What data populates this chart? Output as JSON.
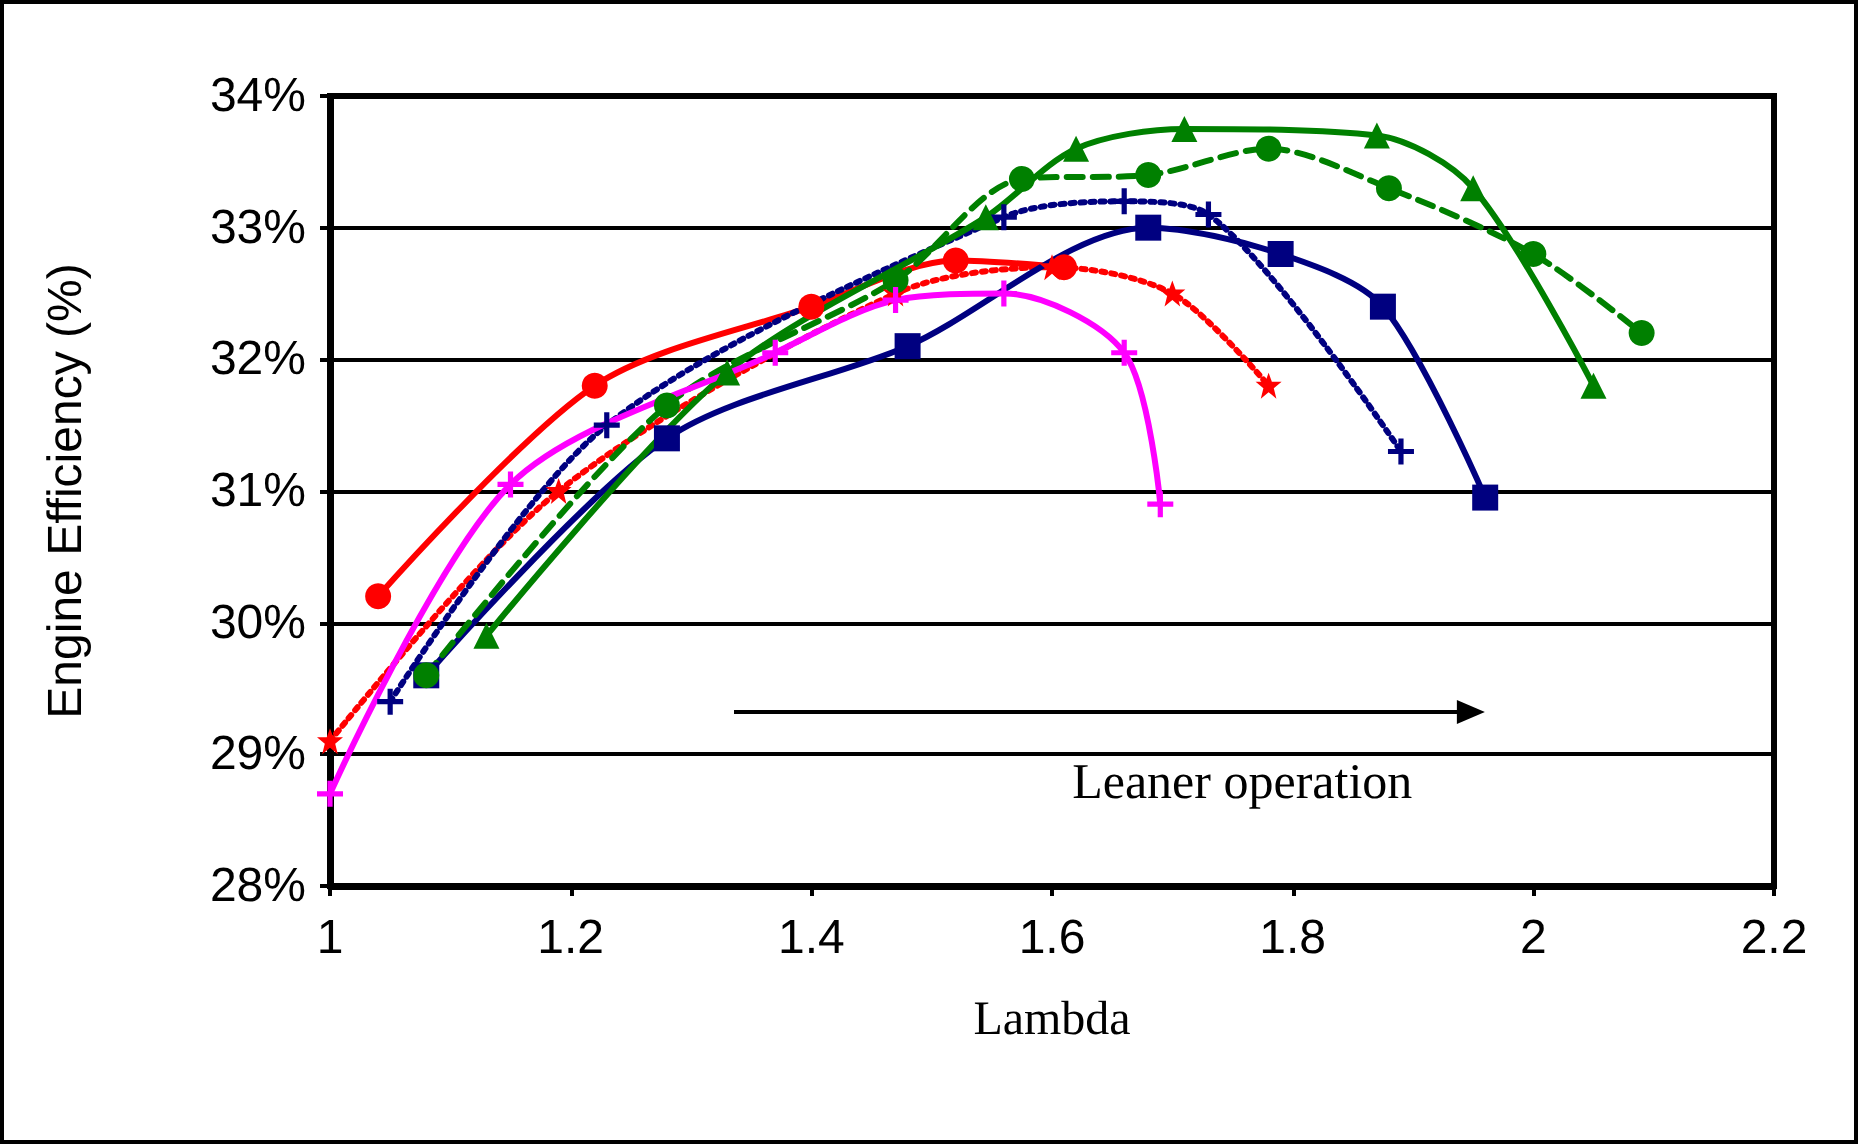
{
  "chart_data": {
    "type": "line",
    "xlabel": "Lambda",
    "ylabel": "Engine Efficiency (%)",
    "annotations": [
      "Leaner operation"
    ],
    "xlim": [
      1,
      2.2
    ],
    "xticks": [
      1,
      1.2,
      1.4,
      1.6,
      1.8,
      2,
      2.2
    ],
    "ylim": [
      28,
      34
    ],
    "yticks": [
      {
        "value": 28,
        "label": "28%"
      },
      {
        "value": 29,
        "label": "29%"
      },
      {
        "value": 30,
        "label": "30%"
      },
      {
        "value": 31,
        "label": "31%"
      },
      {
        "value": 32,
        "label": "32%"
      },
      {
        "value": 33,
        "label": "33%"
      },
      {
        "value": 34,
        "label": "34%"
      }
    ],
    "grid": "y",
    "series": [
      {
        "color": "#ff0000",
        "marker": "circle",
        "line_style": "solid",
        "x": [
          1.04,
          1.22,
          1.4,
          1.52,
          1.61
        ],
        "values": [
          30.2,
          31.8,
          32.4,
          32.75,
          32.7
        ]
      },
      {
        "color": "#ff0000",
        "marker": "star",
        "line_style": "dotted",
        "x": [
          1.0,
          1.19,
          1.47,
          1.6,
          1.7,
          1.78
        ],
        "values": [
          29.1,
          31.0,
          32.5,
          32.7,
          32.5,
          31.8
        ]
      },
      {
        "color": "#000080",
        "marker": "square",
        "line_style": "solid",
        "x": [
          1.08,
          1.28,
          1.48,
          1.68,
          1.79,
          1.875,
          1.96
        ],
        "values": [
          29.6,
          31.4,
          32.1,
          33.0,
          32.8,
          32.4,
          30.95
        ]
      },
      {
        "color": "#000080",
        "marker": "cross",
        "line_style": "dotted",
        "x": [
          1.05,
          1.23,
          1.56,
          1.66,
          1.73,
          1.89
        ],
        "values": [
          29.4,
          31.5,
          33.08,
          33.2,
          33.1,
          31.3
        ]
      },
      {
        "color": "#008000",
        "marker": "triangle",
        "line_style": "solid",
        "x": [
          1.13,
          1.33,
          1.545,
          1.62,
          1.71,
          1.87,
          1.95,
          2.05
        ],
        "values": [
          29.9,
          31.9,
          33.08,
          33.6,
          33.75,
          33.7,
          33.3,
          31.8
        ]
      },
      {
        "color": "#008000",
        "marker": "circle",
        "line_style": "dashed",
        "x": [
          1.08,
          1.28,
          1.47,
          1.575,
          1.68,
          1.78,
          1.88,
          2.0,
          2.09
        ],
        "values": [
          29.6,
          31.65,
          32.6,
          33.37,
          33.4,
          33.6,
          33.3,
          32.8,
          32.2
        ]
      },
      {
        "color": "#ff00ff",
        "marker": "cross",
        "line_style": "solid",
        "x": [
          1.0,
          1.15,
          1.37,
          1.47,
          1.56,
          1.66,
          1.69
        ],
        "values": [
          28.7,
          31.05,
          32.05,
          32.45,
          32.5,
          32.05,
          30.9
        ]
      }
    ]
  }
}
